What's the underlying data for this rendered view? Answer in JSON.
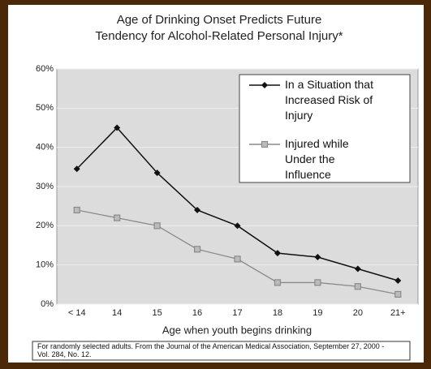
{
  "chart_data": {
    "type": "line",
    "title": [
      "Age of Drinking Onset Predicts Future",
      "Tendency for Alcohol-Related Personal Injury*"
    ],
    "categories": [
      "< 14",
      "14",
      "15",
      "16",
      "17",
      "18",
      "19",
      "20",
      "21+"
    ],
    "series": [
      {
        "name": "In a Situation that Increased Risk of Injury",
        "color": "#111111",
        "values": [
          34.5,
          45,
          33.5,
          24,
          20,
          13,
          12,
          9,
          6
        ]
      },
      {
        "name": "Injured while Under the Influence",
        "color": "#8a8a8a",
        "values": [
          24,
          22,
          20,
          14,
          11.5,
          5.5,
          5.5,
          4.5,
          2.5
        ]
      }
    ],
    "xlabel": "Age when youth begins drinking",
    "ylim": [
      0,
      60
    ],
    "yticks": [
      {
        "value": 0,
        "label": "0%"
      },
      {
        "value": 10,
        "label": "10%"
      },
      {
        "value": 20,
        "label": "20%"
      },
      {
        "value": 30,
        "label": "30%"
      },
      {
        "value": 40,
        "label": "40%"
      },
      {
        "value": 50,
        "label": "50%"
      },
      {
        "value": 60,
        "label": "60%"
      }
    ],
    "grid": true,
    "legend": "upper right",
    "footnote": "For randomly selected adults. From the Journal of the American Medical Association, September 27, 2000 - Vol. 284, No. 12."
  }
}
